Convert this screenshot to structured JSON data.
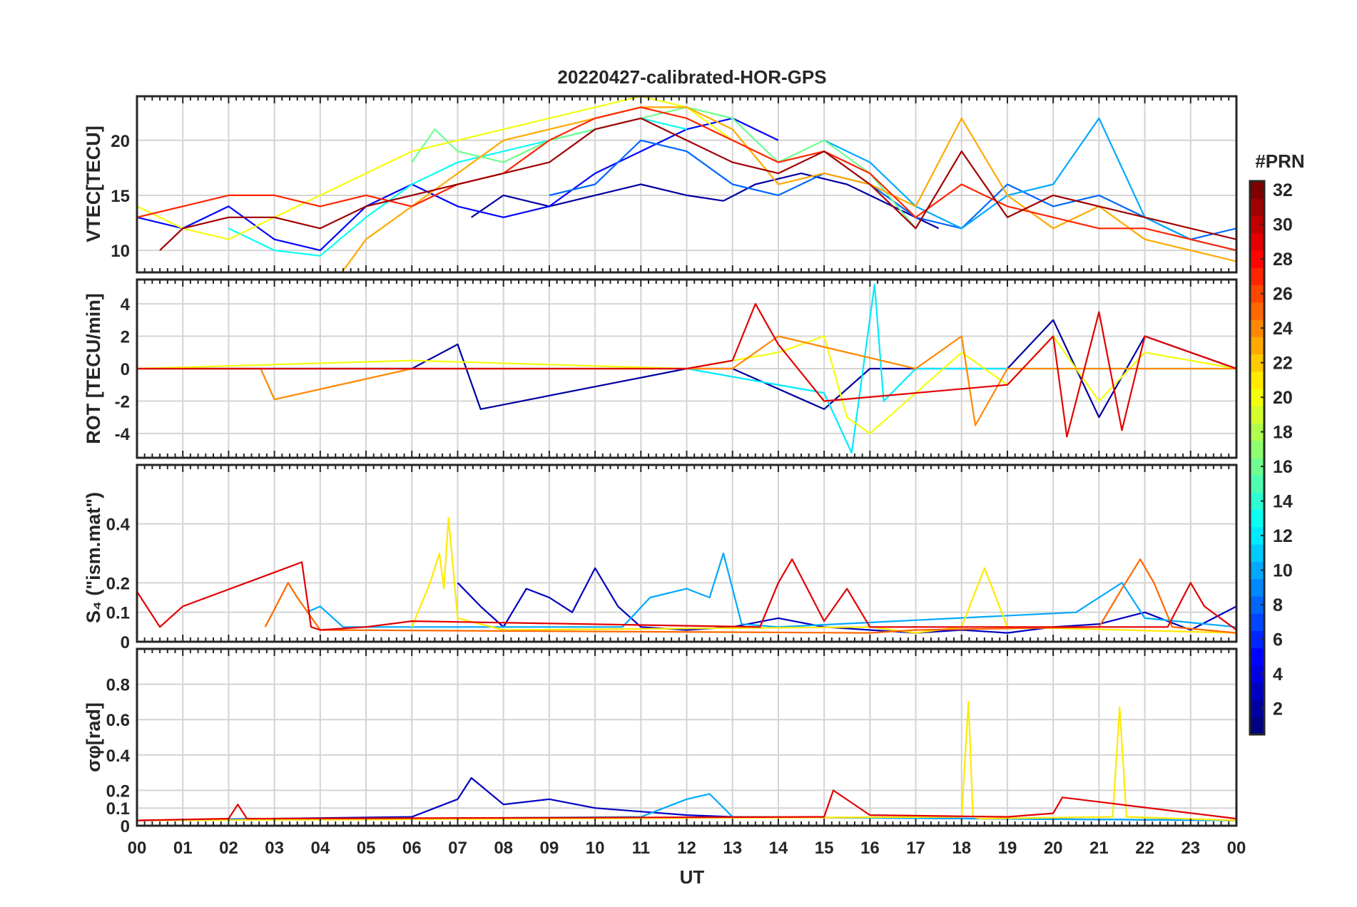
{
  "figure": {
    "title": "20220427-calibrated-HOR-GPS",
    "xlabel": "UT",
    "x_ticks": [
      "00",
      "01",
      "02",
      "03",
      "04",
      "05",
      "06",
      "07",
      "08",
      "09",
      "10",
      "11",
      "12",
      "13",
      "14",
      "15",
      "16",
      "17",
      "18",
      "19",
      "20",
      "21",
      "22",
      "23",
      "00"
    ],
    "colorbar": {
      "label": "#PRN",
      "range": [
        1,
        32
      ],
      "ticks": [
        2,
        4,
        6,
        8,
        10,
        12,
        14,
        16,
        18,
        20,
        22,
        24,
        26,
        28,
        30,
        32
      ],
      "colormap": "jet"
    }
  },
  "chart_data": [
    {
      "type": "line",
      "panel": "vtec",
      "ylabel": "VTEC[TECU]",
      "xlim": [
        0,
        24
      ],
      "ylim": [
        8,
        24
      ],
      "yticks": [
        10,
        15,
        20
      ],
      "series": [
        {
          "name": "PRN 2",
          "prn": 2,
          "x": [
            7.3,
            8,
            9,
            10,
            11,
            12,
            12.8,
            13.5,
            14.5,
            15.5,
            16.5,
            17.5
          ],
          "values": [
            13,
            15,
            14,
            15,
            16,
            15,
            14.5,
            16,
            17,
            16,
            14,
            12
          ]
        },
        {
          "name": "PRN 5",
          "prn": 5,
          "x": [
            0,
            1,
            2,
            3,
            4,
            5,
            6,
            7,
            8,
            9,
            10,
            11,
            12,
            13,
            14
          ],
          "values": [
            13,
            12,
            14,
            11,
            10,
            14,
            16,
            14,
            13,
            14,
            17,
            19,
            21,
            22,
            20
          ]
        },
        {
          "name": "PRN 8",
          "prn": 8,
          "x": [
            9,
            10,
            11,
            12,
            13,
            14,
            15,
            16,
            17,
            18,
            19,
            20,
            21,
            22,
            23,
            24
          ],
          "values": [
            15,
            16,
            20,
            19,
            16,
            15,
            17,
            16,
            13,
            12,
            16,
            14,
            15,
            13,
            11,
            12
          ]
        },
        {
          "name": "PRN 10",
          "prn": 10,
          "x": [
            15,
            16,
            17,
            18,
            19,
            20,
            21,
            22,
            23,
            24
          ],
          "values": [
            20,
            18,
            14,
            12,
            15,
            16,
            22,
            13,
            11,
            10
          ]
        },
        {
          "name": "PRN 13",
          "prn": 13,
          "x": [
            2,
            3,
            4,
            5,
            6,
            7,
            8,
            9,
            10,
            11,
            12
          ],
          "values": [
            12,
            10,
            9.5,
            13,
            16,
            18,
            19,
            20,
            21,
            22,
            21
          ]
        },
        {
          "name": "PRN 16",
          "prn": 16,
          "x": [
            6,
            6.5,
            7,
            8,
            9,
            10,
            11,
            12,
            13,
            14,
            15,
            16,
            17
          ],
          "values": [
            18,
            21,
            19,
            18,
            20,
            21,
            22,
            23,
            22,
            18,
            20,
            17,
            12
          ]
        },
        {
          "name": "PRN 20",
          "prn": 20,
          "x": [
            0,
            1,
            2,
            3,
            4,
            5,
            6,
            7,
            8,
            9,
            10,
            11,
            12,
            13
          ],
          "values": [
            14,
            12,
            11,
            13,
            15,
            17,
            19,
            20,
            21,
            22,
            23,
            24,
            23,
            20
          ]
        },
        {
          "name": "PRN 23",
          "prn": 23,
          "x": [
            4.3,
            5,
            6,
            7,
            8,
            9,
            10,
            11,
            12,
            13,
            14,
            15,
            16,
            17,
            18,
            19,
            20,
            21,
            22,
            23,
            24
          ],
          "values": [
            7,
            11,
            14,
            17,
            20,
            21,
            22,
            23,
            23,
            21,
            16,
            17,
            16,
            14,
            22,
            15,
            12,
            14,
            11,
            10,
            9
          ]
        },
        {
          "name": "PRN 27",
          "prn": 27,
          "x": [
            0,
            1,
            2,
            3,
            4,
            5,
            6,
            7,
            8,
            9,
            10,
            11,
            12,
            13,
            14,
            15,
            16,
            17,
            18,
            19,
            20,
            21,
            22,
            23,
            24
          ],
          "values": [
            13,
            14,
            15,
            15,
            14,
            15,
            14,
            16,
            17,
            20,
            22,
            23,
            22,
            20,
            18,
            19,
            17,
            13,
            16,
            14,
            13,
            12,
            12,
            11,
            10
          ]
        },
        {
          "name": "PRN 31",
          "prn": 31,
          "x": [
            0.5,
            1,
            2,
            3,
            4,
            5,
            6,
            7,
            8,
            9,
            10,
            11,
            12,
            13,
            14,
            15,
            16,
            17,
            18,
            19,
            20,
            21,
            22,
            23,
            24
          ],
          "values": [
            10,
            12,
            13,
            13,
            12,
            14,
            15,
            16,
            17,
            18,
            21,
            22,
            20,
            18,
            17,
            19,
            16,
            12,
            19,
            13,
            15,
            14,
            13,
            12,
            11
          ]
        }
      ]
    },
    {
      "type": "line",
      "panel": "rot",
      "ylabel": "ROT [TECU/min]",
      "xlim": [
        0,
        24
      ],
      "ylim": [
        -5.5,
        5.5
      ],
      "yticks": [
        -4,
        -2,
        0,
        2,
        4
      ],
      "series": [
        {
          "name": "PRN 2",
          "prn": 2,
          "x": [
            0,
            6,
            7,
            7.5,
            12,
            13,
            15,
            16,
            19,
            20,
            21,
            22,
            24
          ],
          "values": [
            0,
            0,
            1.5,
            -2.5,
            0,
            0,
            -2.5,
            0,
            0,
            3,
            -3,
            2,
            0
          ]
        },
        {
          "name": "PRN 12",
          "prn": 12,
          "x": [
            0,
            6,
            12,
            15,
            15.6,
            16.1,
            16.3,
            17,
            24
          ],
          "values": [
            0,
            0,
            0,
            -1.5,
            -5.2,
            5.2,
            -2,
            0,
            0
          ]
        },
        {
          "name": "PRN 20",
          "prn": 20,
          "x": [
            0,
            6,
            12,
            14,
            15,
            15.5,
            16,
            18,
            19,
            20,
            21,
            22,
            24
          ],
          "values": [
            0,
            0.5,
            0,
            1,
            2,
            -3,
            -4,
            1,
            -1,
            2,
            -2,
            1,
            0
          ]
        },
        {
          "name": "PRN 24",
          "prn": 24,
          "x": [
            0,
            2.7,
            3,
            6,
            13,
            14,
            17,
            18,
            18.3,
            18.6,
            19,
            24
          ],
          "values": [
            0,
            0,
            -1.9,
            0,
            0,
            2,
            0,
            2,
            -3.5,
            -2,
            0,
            0
          ]
        },
        {
          "name": "PRN 29",
          "prn": 29,
          "x": [
            0,
            6,
            12,
            13,
            13.5,
            14,
            15,
            19,
            20,
            20.3,
            21,
            21.5,
            22,
            24
          ],
          "values": [
            0,
            0,
            0,
            0.5,
            4,
            1.5,
            -2,
            -1,
            2,
            -4.2,
            3.5,
            -3.8,
            2,
            0
          ]
        }
      ]
    },
    {
      "type": "line",
      "panel": "s4",
      "ylabel": "S₄ (\"ism.mat\")",
      "xlim": [
        0,
        24
      ],
      "ylim": [
        0,
        0.6
      ],
      "yticks": [
        0,
        0.1,
        0.2,
        0.4
      ],
      "series": [
        {
          "name": "PRN 3",
          "prn": 3,
          "x": [
            7,
            7.5,
            8,
            8.5,
            9,
            9.5,
            10,
            10.5,
            11,
            12,
            13,
            14,
            15,
            16,
            17,
            18,
            19,
            20,
            21,
            22,
            23,
            24
          ],
          "values": [
            0.2,
            0.12,
            0.05,
            0.18,
            0.15,
            0.1,
            0.25,
            0.12,
            0.05,
            0.04,
            0.05,
            0.08,
            0.05,
            0.04,
            0.03,
            0.04,
            0.03,
            0.05,
            0.06,
            0.1,
            0.04,
            0.12
          ]
        },
        {
          "name": "PRN 10",
          "prn": 10,
          "x": [
            3.7,
            4,
            4.5,
            10.6,
            11.2,
            12,
            12.5,
            12.8,
            13.2,
            14,
            20.5,
            21,
            21.5,
            22,
            24
          ],
          "values": [
            0.1,
            0.12,
            0.05,
            0.05,
            0.15,
            0.18,
            0.15,
            0.3,
            0.06,
            0.05,
            0.1,
            0.15,
            0.2,
            0.08,
            0.05
          ]
        },
        {
          "name": "PRN 21",
          "prn": 21,
          "x": [
            6,
            6.4,
            6.6,
            6.7,
            6.8,
            7,
            8,
            16,
            17,
            18,
            18.5,
            19,
            24
          ],
          "values": [
            0.05,
            0.2,
            0.3,
            0.18,
            0.42,
            0.08,
            0.04,
            0.05,
            0.03,
            0.05,
            0.25,
            0.05,
            0.03
          ]
        },
        {
          "name": "PRN 25",
          "prn": 25,
          "x": [
            2.8,
            3.3,
            3.5,
            4,
            16,
            17,
            21,
            21.5,
            21.9,
            22.2,
            22.6,
            24
          ],
          "values": [
            0.05,
            0.2,
            0.15,
            0.04,
            0.03,
            0.04,
            0.05,
            0.18,
            0.28,
            0.2,
            0.05,
            0.03
          ]
        },
        {
          "name": "PRN 29",
          "prn": 29,
          "x": [
            0,
            0.5,
            1,
            3.6,
            3.8,
            4,
            5,
            6,
            13.6,
            14,
            14.3,
            15,
            15.5,
            16,
            22.5,
            23,
            23.3,
            24
          ],
          "values": [
            0.17,
            0.05,
            0.12,
            0.27,
            0.05,
            0.04,
            0.05,
            0.07,
            0.05,
            0.2,
            0.28,
            0.07,
            0.18,
            0.05,
            0.05,
            0.2,
            0.12,
            0.04
          ]
        }
      ]
    },
    {
      "type": "line",
      "panel": "sigma_phi",
      "ylabel": "σφ[rad]",
      "xlim": [
        0,
        24
      ],
      "ylim": [
        0,
        1
      ],
      "yticks": [
        0,
        0.1,
        0.2,
        0.4,
        0.6,
        0.8
      ],
      "series": [
        {
          "name": "PRN 3",
          "prn": 3,
          "x": [
            0,
            6,
            7,
            7.3,
            8,
            9,
            10,
            11,
            12,
            13,
            24
          ],
          "values": [
            0.03,
            0.05,
            0.15,
            0.27,
            0.12,
            0.15,
            0.1,
            0.08,
            0.06,
            0.05,
            0.03
          ]
        },
        {
          "name": "PRN 10",
          "prn": 10,
          "x": [
            0,
            11,
            12,
            12.5,
            13,
            24
          ],
          "values": [
            0.03,
            0.05,
            0.15,
            0.18,
            0.05,
            0.03
          ]
        },
        {
          "name": "PRN 21",
          "prn": 21,
          "x": [
            0,
            18,
            18.15,
            18.25,
            18.4,
            21.3,
            21.45,
            21.6,
            24
          ],
          "values": [
            0.03,
            0.05,
            0.7,
            0.05,
            0.04,
            0.05,
            0.67,
            0.05,
            0.03
          ]
        },
        {
          "name": "PRN 29",
          "prn": 29,
          "x": [
            0,
            2,
            2.2,
            2.4,
            15,
            15.2,
            16,
            19,
            20,
            20.2,
            24
          ],
          "values": [
            0.03,
            0.04,
            0.12,
            0.04,
            0.05,
            0.2,
            0.06,
            0.05,
            0.07,
            0.16,
            0.04
          ]
        }
      ]
    }
  ]
}
